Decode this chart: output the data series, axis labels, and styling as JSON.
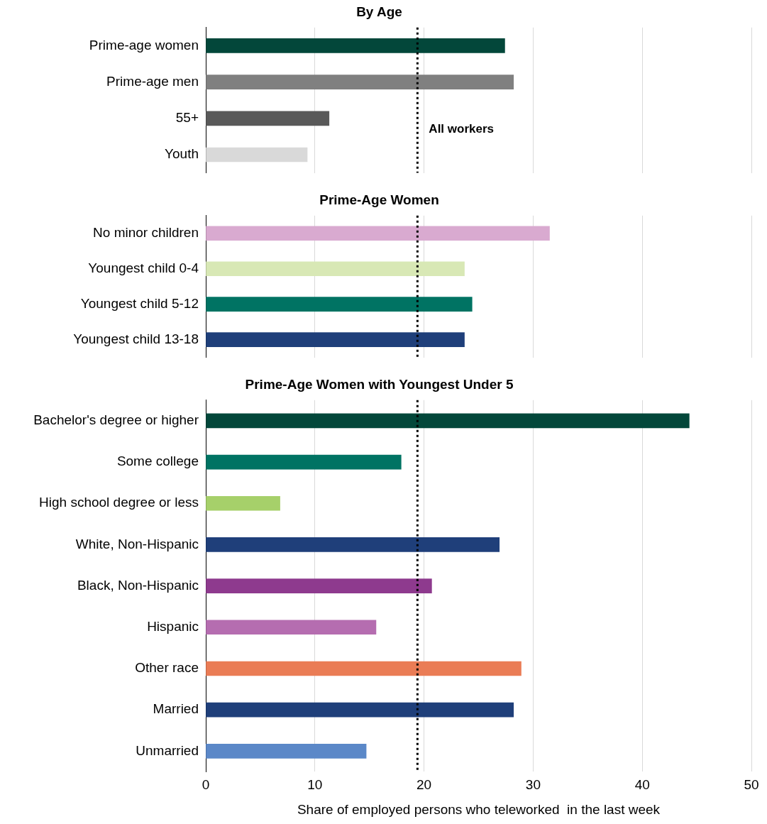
{
  "chart_data": [
    {
      "type": "bar",
      "orientation": "horizontal",
      "title": "By Age",
      "categories": [
        "Prime-age women",
        "Prime-age men",
        "55+",
        "Youth"
      ],
      "values": [
        27.4,
        28.2,
        11.3,
        9.3
      ],
      "colors": [
        "#03473a",
        "#808080",
        "#595959",
        "#d9d9d9"
      ],
      "xlim": [
        0,
        50
      ],
      "xticks": [
        0,
        10,
        20,
        30,
        40,
        50
      ],
      "grid": "x",
      "tick_labels": "y",
      "ref_lines": [
        {
          "axis": "x",
          "value": 19.4,
          "label": "All workers",
          "color": "#000000",
          "line_style": "dotted"
        }
      ]
    },
    {
      "type": "bar",
      "orientation": "horizontal",
      "title": "Prime-Age Women",
      "categories": [
        "No minor children",
        "Youngest child 0-4",
        "Youngest child 5-12",
        "Youngest child 13-18"
      ],
      "values": [
        31.5,
        23.7,
        24.4,
        23.7
      ],
      "colors": [
        "#d9aad0",
        "#d8e8b5",
        "#007363",
        "#1f3f7a"
      ],
      "xlim": [
        0,
        50
      ],
      "xticks": [
        0,
        10,
        20,
        30,
        40,
        50
      ],
      "grid": "x",
      "tick_labels": "y",
      "ref_lines": [
        {
          "axis": "x",
          "value": 19.4,
          "color": "#000000",
          "line_style": "dotted"
        }
      ]
    },
    {
      "type": "bar",
      "orientation": "horizontal",
      "title": "Prime-Age Women with Youngest Under 5",
      "xlabel": "Share of employed persons who teleworked  in the last week",
      "categories": [
        "Bachelor's degree or higher",
        "Some college",
        "High school degree or less",
        "White, Non-Hispanic",
        "Black, Non-Hispanic",
        "Hispanic",
        "Other race",
        "Married",
        "Unmarried"
      ],
      "values": [
        44.3,
        17.9,
        6.8,
        26.9,
        20.7,
        15.6,
        28.9,
        28.2,
        14.7
      ],
      "colors": [
        "#03473a",
        "#007363",
        "#a6d06a",
        "#1f3f7a",
        "#8e3a8e",
        "#b56db0",
        "#ea7c55",
        "#1f3f7a",
        "#5b88c8"
      ],
      "xlim": [
        0,
        50
      ],
      "xticks": [
        0,
        10,
        20,
        30,
        40,
        50
      ],
      "grid": "x",
      "ref_lines": [
        {
          "axis": "x",
          "value": 19.4,
          "color": "#000000",
          "line_style": "dotted"
        }
      ]
    }
  ]
}
